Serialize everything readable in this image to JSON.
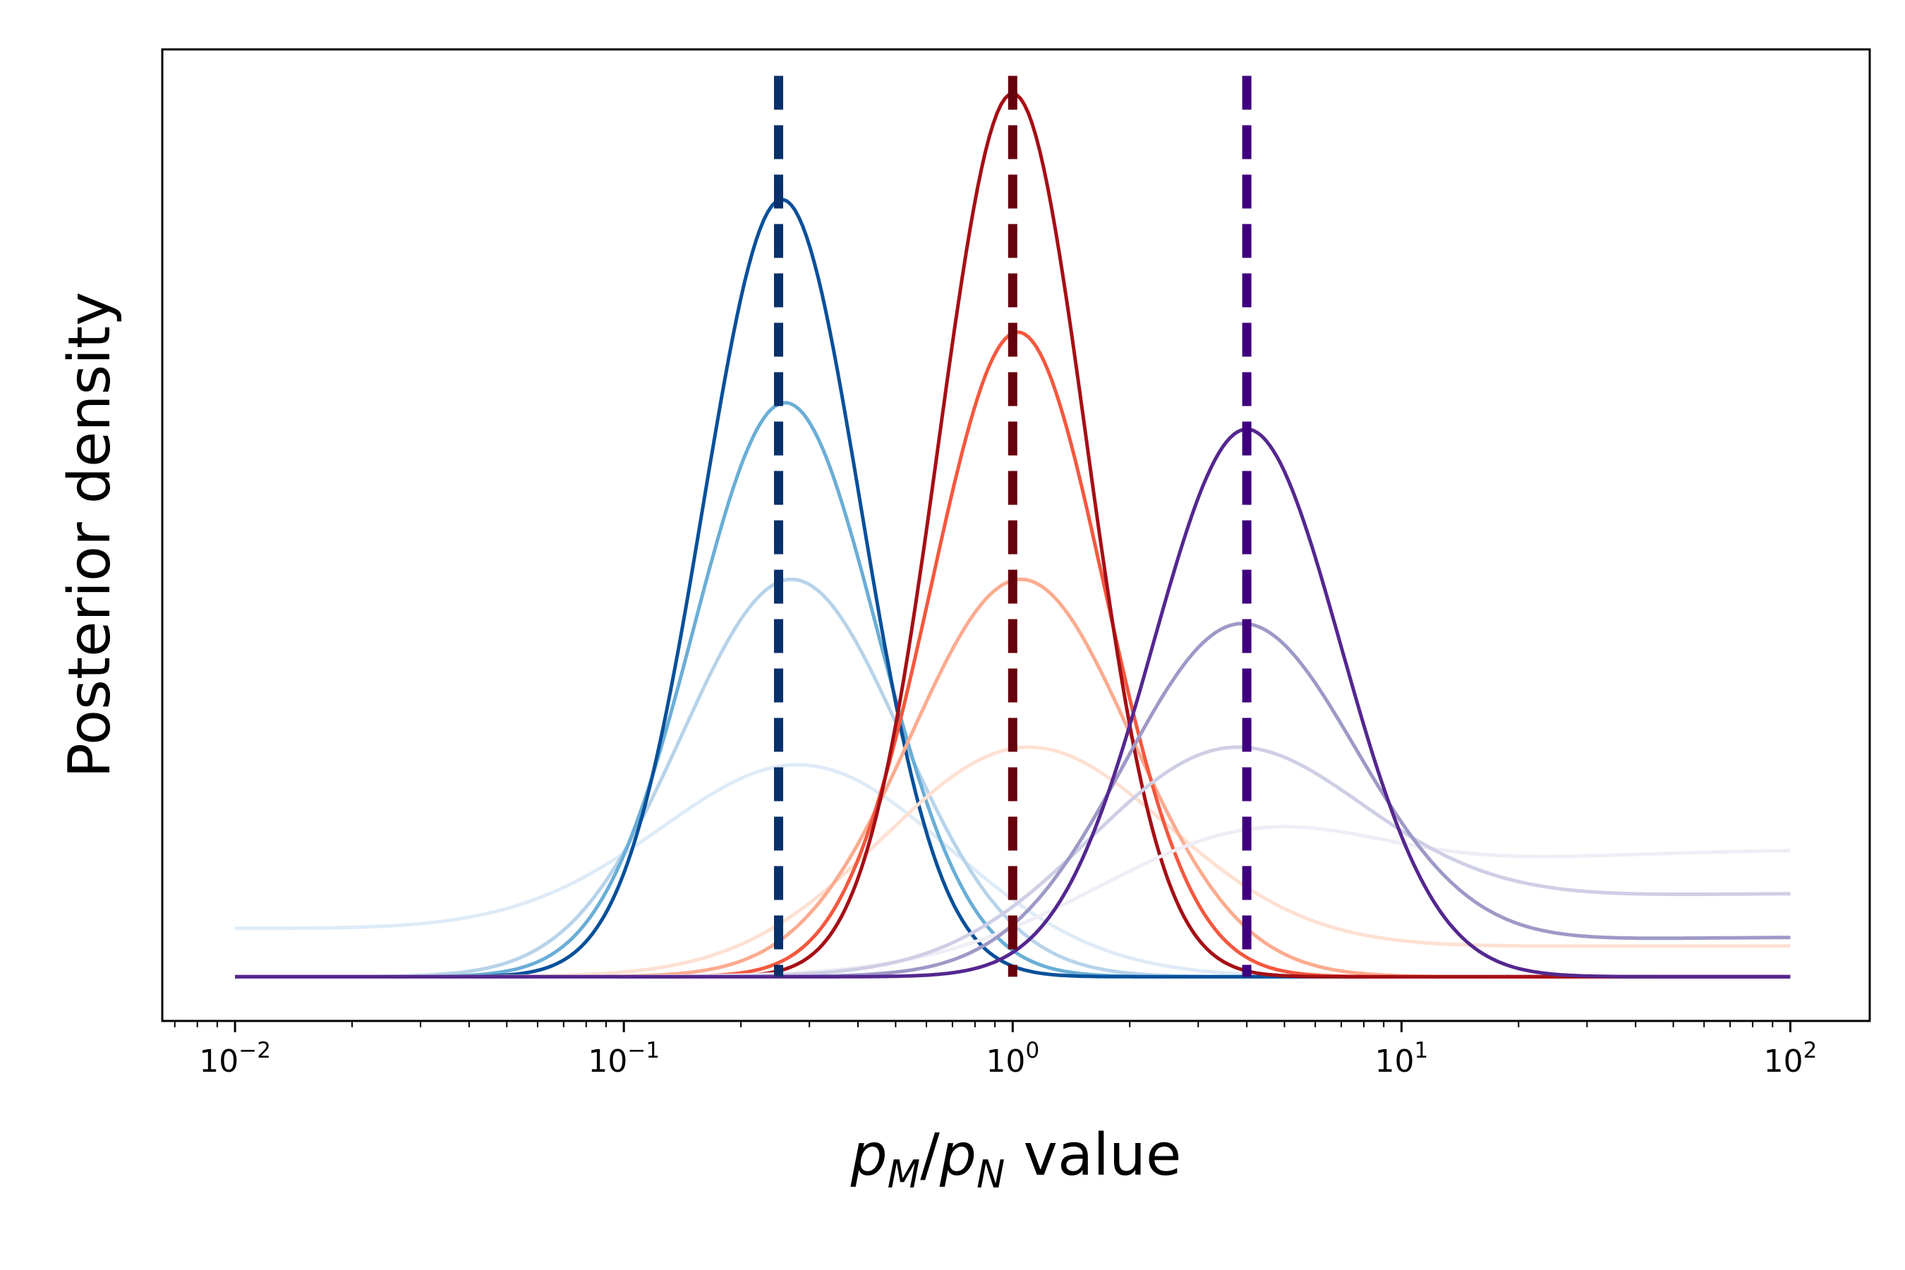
{
  "chart_data": {
    "type": "line",
    "title": "",
    "xlabel": {
      "p": "p",
      "m": "M",
      "slash": "/",
      "n": "N",
      "rest": " value"
    },
    "ylabel": "Posterior density",
    "xscale": "log",
    "xlim": [
      0.0065,
      160
    ],
    "ylim": [
      -0.05,
      1.05
    ],
    "x_range": [
      0.01,
      100
    ],
    "grid": false,
    "legend": "none",
    "y_ticks_shown": false,
    "x_ticks": [
      {
        "value": 0.01,
        "base": "10",
        "exp": "−2"
      },
      {
        "value": 0.1,
        "base": "10",
        "exp": "−1"
      },
      {
        "value": 1,
        "base": "10",
        "exp": "0"
      },
      {
        "value": 10,
        "base": "10",
        "exp": "1"
      },
      {
        "value": 100,
        "base": "10",
        "exp": "2"
      }
    ],
    "reference_lines": [
      {
        "x": 0.25,
        "color": "#08306b",
        "style": "dashed"
      },
      {
        "x": 1.0,
        "color": "#67000d",
        "style": "dashed"
      },
      {
        "x": 4.0,
        "color": "#3f007d",
        "style": "dashed"
      }
    ],
    "series": [
      {
        "group": "blue",
        "center": 0.28,
        "peak": 0.24,
        "tail_left": 0.055,
        "tail_right": 0.0,
        "color": "#deebf7"
      },
      {
        "group": "blue",
        "center": 0.27,
        "peak": 0.45,
        "tail_left": 0.0,
        "tail_right": 0.0,
        "color": "#b7d3ea"
      },
      {
        "group": "blue",
        "center": 0.26,
        "peak": 0.65,
        "tail_left": 0.0,
        "tail_right": 0.0,
        "color": "#6aaed6"
      },
      {
        "group": "blue",
        "center": 0.255,
        "peak": 0.88,
        "tail_left": 0.0,
        "tail_right": 0.0,
        "color": "#08509a"
      },
      {
        "group": "red",
        "center": 1.1,
        "peak": 0.26,
        "tail_left": 0.0,
        "tail_right": 0.035,
        "color": "#fee0d2"
      },
      {
        "group": "red",
        "center": 1.05,
        "peak": 0.45,
        "tail_left": 0.0,
        "tail_right": 0.0,
        "color": "#fcab8f"
      },
      {
        "group": "red",
        "center": 1.03,
        "peak": 0.73,
        "tail_left": 0.0,
        "tail_right": 0.0,
        "color": "#f5583f"
      },
      {
        "group": "red",
        "center": 1.0,
        "peak": 1.0,
        "tail_left": 0.0,
        "tail_right": 0.0,
        "color": "#a50f15"
      },
      {
        "group": "purple",
        "center": 5.0,
        "peak": 0.17,
        "tail_left": 0.0,
        "tail_right": 0.145,
        "color": "#efedf5"
      },
      {
        "group": "purple",
        "center": 3.8,
        "peak": 0.26,
        "tail_left": 0.0,
        "tail_right": 0.095,
        "color": "#cecee5"
      },
      {
        "group": "purple",
        "center": 3.9,
        "peak": 0.4,
        "tail_left": 0.0,
        "tail_right": 0.045,
        "color": "#9d99c7"
      },
      {
        "group": "purple",
        "center": 4.0,
        "peak": 0.62,
        "tail_left": 0.0,
        "tail_right": 0.0,
        "color": "#54278f"
      }
    ]
  }
}
